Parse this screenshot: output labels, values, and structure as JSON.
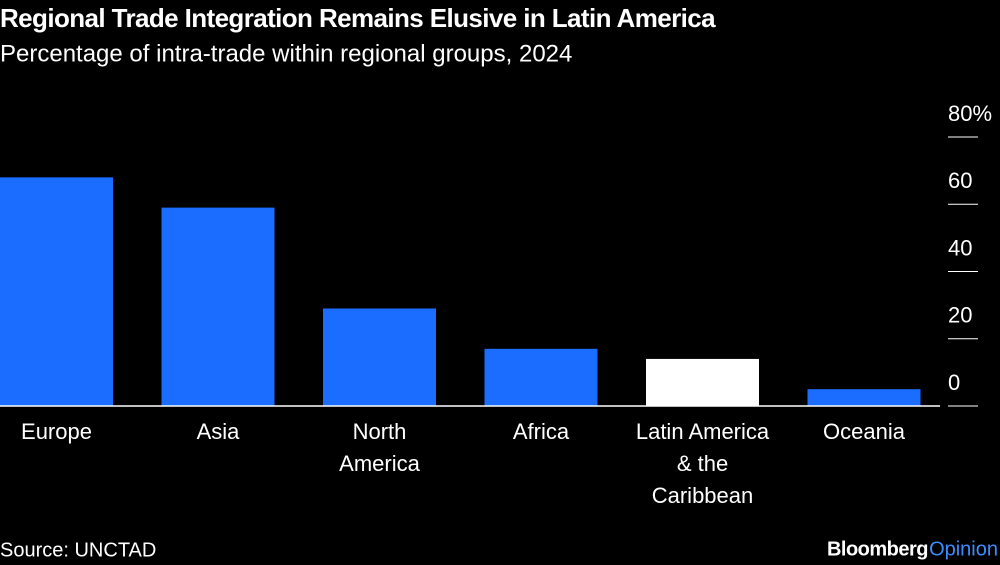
{
  "chart_data": {
    "type": "bar",
    "title": "Regional Trade Integration Remains Elusive in Latin America",
    "subtitle": "Percentage of intra-trade within regional groups, 2024",
    "categories": [
      "Europe",
      "Asia",
      "North\nAmerica",
      "Africa",
      "Latin America\n& the\nCaribbean",
      "Oceania"
    ],
    "values": [
      68,
      59,
      29,
      17,
      14,
      5
    ],
    "colors": [
      "#1a6dff",
      "#1a6dff",
      "#1a6dff",
      "#1a6dff",
      "#ffffff",
      "#1a6dff"
    ],
    "ylim": [
      0,
      80
    ],
    "yticks": [
      0,
      20,
      40,
      60,
      {
        "value": 80,
        "label": "80%"
      }
    ],
    "source": "Source: UNCTAD",
    "brand": "Bloomberg",
    "brand_suffix": "Opinion"
  }
}
